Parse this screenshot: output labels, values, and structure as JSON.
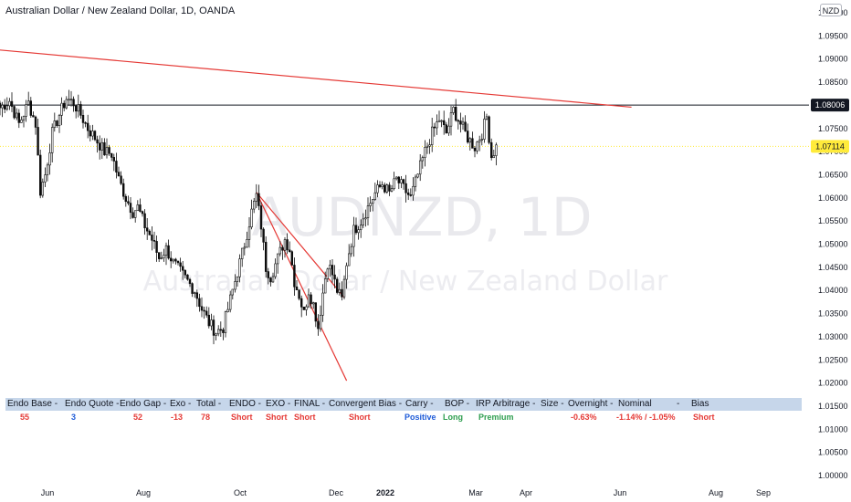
{
  "header": {
    "title": "Australian Dollar / New Zealand Dollar, 1D, OANDA",
    "currency": "NZD"
  },
  "watermark": {
    "symbol": "AUDNZD, 1D",
    "name": "Australian Dollar / New Zealand Dollar"
  },
  "colors": {
    "up": "#0c0c0c",
    "down": "#0c0c0c",
    "trendline": "#e53935",
    "hline": "#131722",
    "current_price": "#ffeb3b",
    "panel_header": "#c6d6ea"
  },
  "chart_data": {
    "type": "candlestick",
    "yaxis": {
      "min": 1.0,
      "max": 1.1,
      "ticks": [
        "1.10000",
        "1.09500",
        "1.09000",
        "1.08500",
        "1.08000",
        "1.07500",
        "1.07000",
        "1.06500",
        "1.06000",
        "1.05500",
        "1.05000",
        "1.04500",
        "1.04000",
        "1.03500",
        "1.03000",
        "1.02500",
        "1.02000",
        "1.01500",
        "1.01000",
        "1.00500",
        "1.00000"
      ]
    },
    "xaxis": {
      "labels": [
        "Jun",
        "Aug",
        "Oct",
        "Dec",
        "2022",
        "Mar",
        "Apr",
        "Jun",
        "Aug",
        "Sep"
      ]
    },
    "price_labels": [
      {
        "value": 1.08006,
        "text": "1.08006",
        "style": "dark"
      },
      {
        "value": 1.07114,
        "text": "1.07114",
        "style": "yellow"
      }
    ],
    "horizontal_line": 1.08006,
    "current_price_line": 1.07114,
    "trendlines": [
      {
        "from": {
          "bar": -1,
          "price": 1.092
        },
        "to": {
          "bar": 266,
          "price": 1.0796
        }
      },
      {
        "from": {
          "bar": 108,
          "price": 1.0612
        },
        "to": {
          "bar": 146,
          "price": 1.0205
        }
      },
      {
        "from": {
          "bar": 108,
          "price": 1.0612
        },
        "to": {
          "bar": 145,
          "price": 1.0385
        }
      }
    ],
    "price_path": [
      [
        0,
        1.0795
      ],
      [
        4,
        1.081
      ],
      [
        8,
        1.076
      ],
      [
        12,
        1.0805
      ],
      [
        15,
        1.076
      ],
      [
        17,
        1.0615
      ],
      [
        19,
        1.065
      ],
      [
        22,
        1.074
      ],
      [
        25,
        1.078
      ],
      [
        28,
        1.0815
      ],
      [
        31,
        1.0805
      ],
      [
        34,
        1.078
      ],
      [
        37,
        1.075
      ],
      [
        40,
        1.073
      ],
      [
        44,
        1.07
      ],
      [
        47,
        1.0695
      ],
      [
        50,
        1.064
      ],
      [
        53,
        1.06
      ],
      [
        56,
        1.057
      ],
      [
        58,
        1.058
      ],
      [
        61,
        1.054
      ],
      [
        64,
        1.051
      ],
      [
        67,
        1.047
      ],
      [
        70,
        1.049
      ],
      [
        73,
        1.046
      ],
      [
        76,
        1.044
      ],
      [
        79,
        1.042
      ],
      [
        82,
        1.04
      ],
      [
        85,
        1.036
      ],
      [
        88,
        1.033
      ],
      [
        91,
        1.031
      ],
      [
        94,
        1.032
      ],
      [
        97,
        1.038
      ],
      [
        100,
        1.044
      ],
      [
        103,
        1.05
      ],
      [
        106,
        1.057
      ],
      [
        108,
        1.0605
      ],
      [
        110,
        1.054
      ],
      [
        112,
        1.045
      ],
      [
        114,
        1.043
      ],
      [
        117,
        1.047
      ],
      [
        120,
        1.051
      ],
      [
        122,
        1.049
      ],
      [
        124,
        1.042
      ],
      [
        126,
        1.039
      ],
      [
        128,
        1.035
      ],
      [
        130,
        1.04
      ],
      [
        132,
        1.037
      ],
      [
        134,
        1.032
      ],
      [
        136,
        1.0395
      ],
      [
        138,
        1.046
      ],
      [
        140,
        1.0435
      ],
      [
        142,
        1.04
      ],
      [
        144,
        1.038
      ],
      [
        146,
        1.046
      ],
      [
        149,
        1.053
      ],
      [
        152,
        1.055
      ],
      [
        155,
        1.058
      ],
      [
        158,
        1.061
      ],
      [
        161,
        1.063
      ],
      [
        164,
        1.061
      ],
      [
        167,
        1.064
      ],
      [
        170,
        1.062
      ],
      [
        173,
        1.06
      ],
      [
        176,
        1.065
      ],
      [
        179,
        1.07
      ],
      [
        182,
        1.074
      ],
      [
        185,
        1.077
      ],
      [
        188,
        1.074
      ],
      [
        191,
        1.079
      ],
      [
        194,
        1.076
      ],
      [
        197,
        1.073
      ],
      [
        200,
        1.071
      ],
      [
        203,
        1.074
      ],
      [
        205,
        1.0775
      ],
      [
        207,
        1.069
      ],
      [
        209,
        1.071
      ]
    ],
    "table": {
      "headers": [
        {
          "label": "Endo Base -",
          "x": 2
        },
        {
          "label": "Endo Quote -",
          "x": 65
        },
        {
          "label": "Endo Gap -",
          "x": 125
        },
        {
          "label": "Exo -",
          "x": 180
        },
        {
          "label": "Total -",
          "x": 209
        },
        {
          "label": "ENDO -",
          "x": 245
        },
        {
          "label": "EXO -",
          "x": 285
        },
        {
          "label": "FINAL -",
          "x": 316
        },
        {
          "label": "Convergent Bias -",
          "x": 354
        },
        {
          "label": "Carry -",
          "x": 438
        },
        {
          "label": "BOP -",
          "x": 481
        },
        {
          "label": "IRP Arbitrage -",
          "x": 515
        },
        {
          "label": "Size -",
          "x": 586
        },
        {
          "label": "Overnight -",
          "x": 616
        },
        {
          "label": "Nominal",
          "x": 671
        },
        {
          "label": "-",
          "x": 735
        },
        {
          "label": "Bias",
          "x": 751
        }
      ],
      "values": [
        {
          "text": "55",
          "x": 16,
          "color": "red"
        },
        {
          "text": "3",
          "x": 72,
          "color": "blue"
        },
        {
          "text": "52",
          "x": 140,
          "color": "red"
        },
        {
          "text": "-13",
          "x": 181,
          "color": "red"
        },
        {
          "text": "78",
          "x": 214,
          "color": "red"
        },
        {
          "text": "Short",
          "x": 247,
          "color": "red"
        },
        {
          "text": "Short",
          "x": 285,
          "color": "red"
        },
        {
          "text": "Short",
          "x": 316,
          "color": "red"
        },
        {
          "text": "Short",
          "x": 376,
          "color": "red"
        },
        {
          "text": "Positive",
          "x": 437,
          "color": "blue"
        },
        {
          "text": "Long",
          "x": 479,
          "color": "green"
        },
        {
          "text": "Premium",
          "x": 518,
          "color": "green"
        },
        {
          "text": "-0.63%",
          "x": 619,
          "color": "red"
        },
        {
          "text": "-1.14% / -1.05%",
          "x": 669,
          "color": "red"
        },
        {
          "text": "Short",
          "x": 753,
          "color": "red"
        }
      ]
    }
  }
}
